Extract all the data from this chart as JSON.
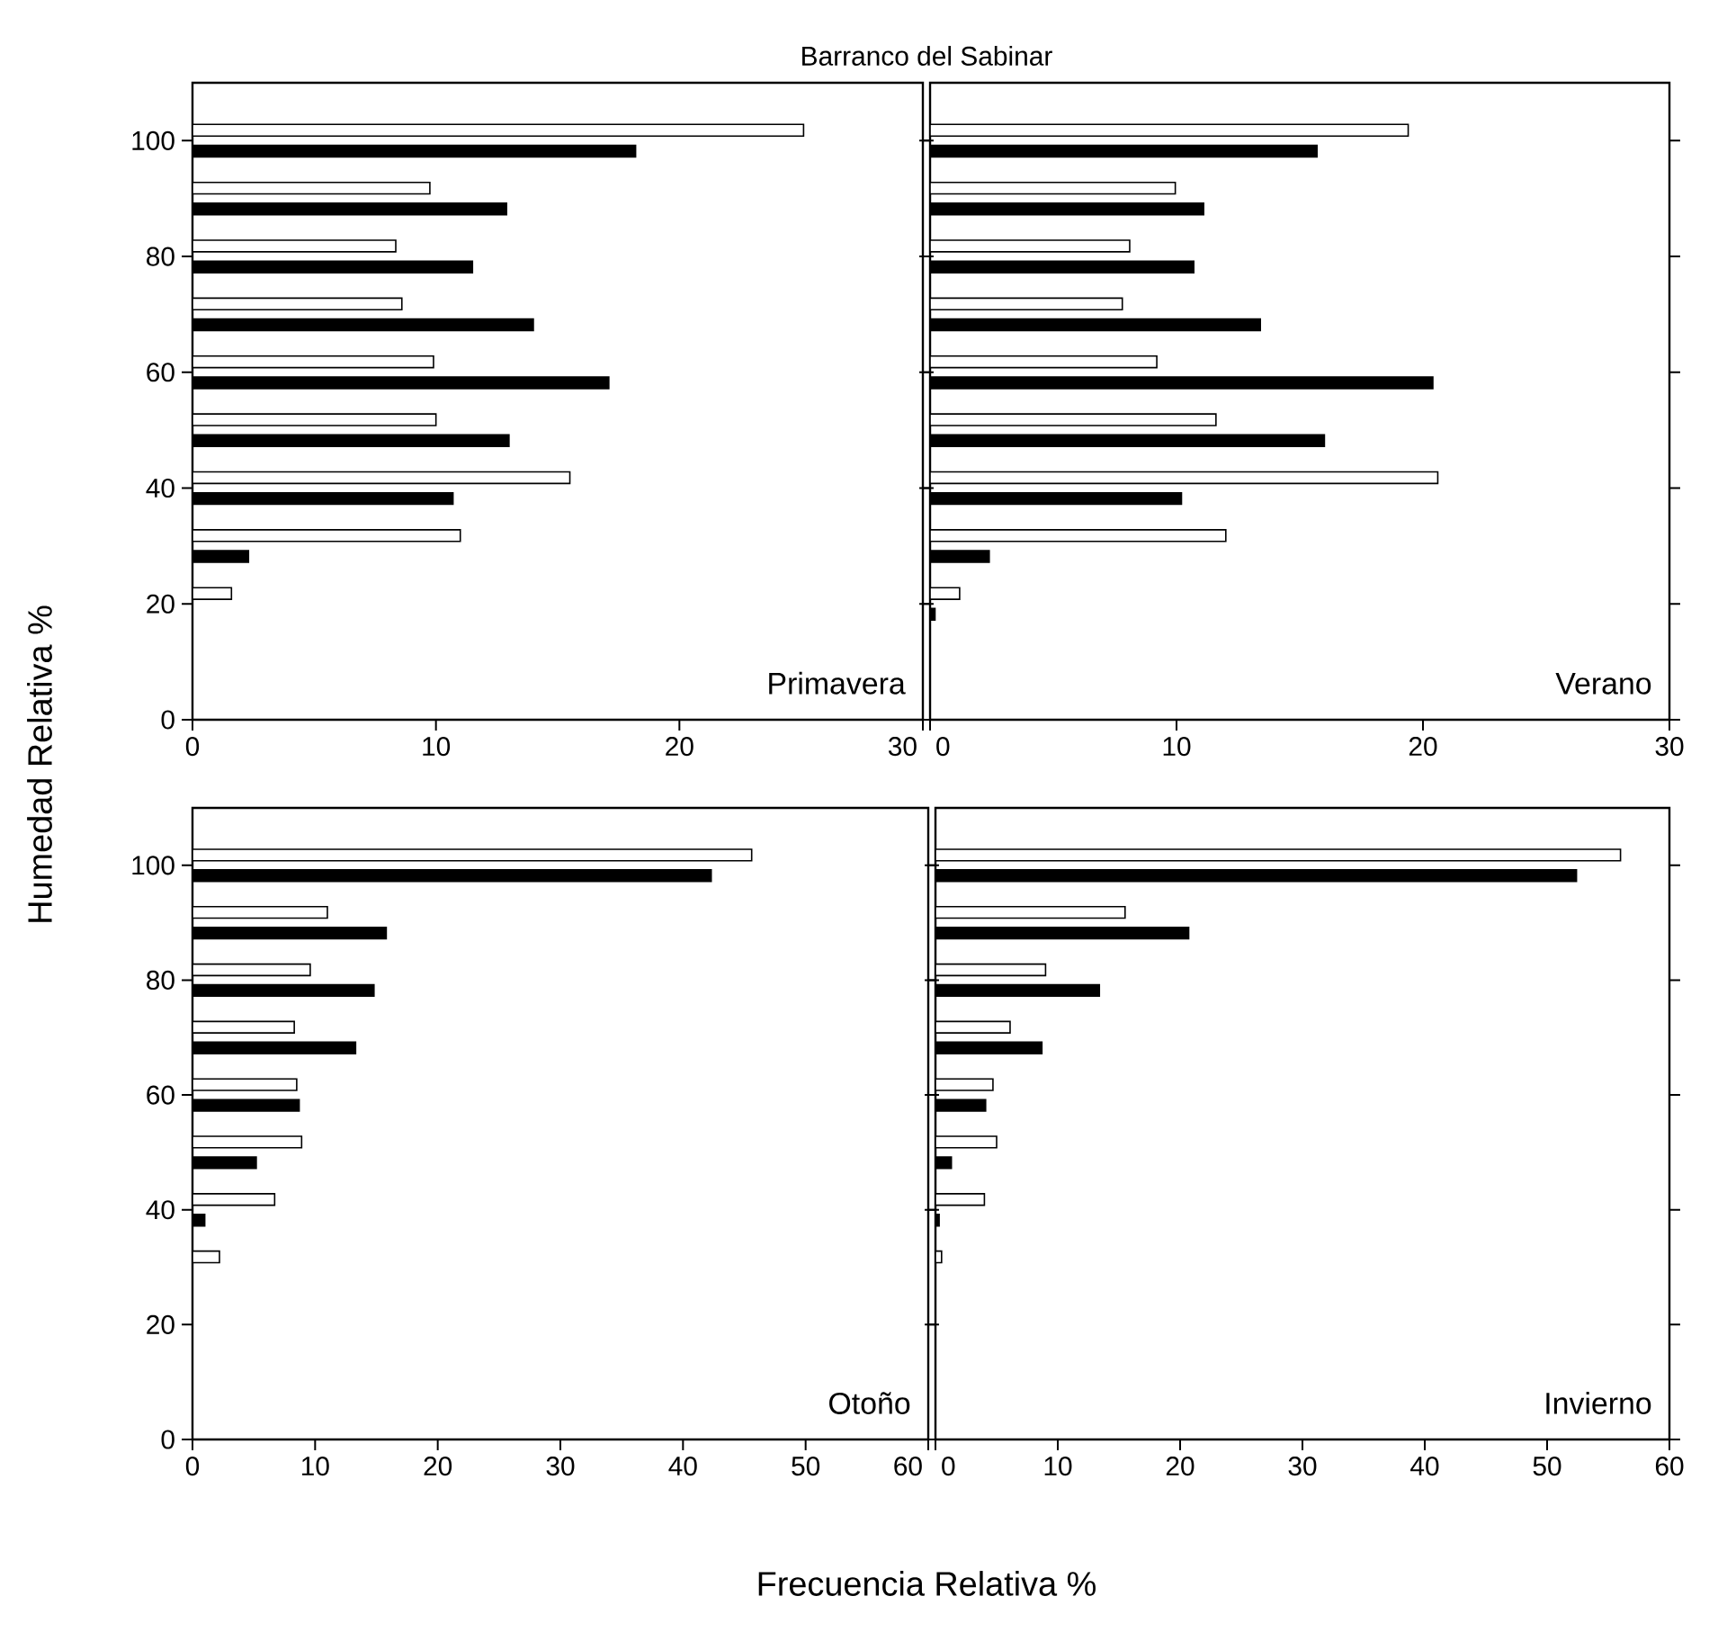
{
  "chart_data": [
    {
      "type": "bar",
      "orientation": "horizontal",
      "title": "Barranco del Sabinar",
      "ylabel": "Humedad Relativa %",
      "x": [
        20,
        30,
        40,
        50,
        60,
        70,
        80,
        90,
        100
      ],
      "xlim": [
        0,
        30
      ],
      "xticks": [
        0,
        10,
        20,
        30
      ],
      "ylim": [
        0,
        110
      ],
      "yticks": [
        0,
        20,
        40,
        60,
        80,
        100
      ],
      "annotations": [
        "Primavera"
      ],
      "series": [
        {
          "color": "#ffffff",
          "values": [
            1.6,
            11.0,
            15.5,
            10.0,
            9.9,
            8.6,
            8.35,
            9.75,
            25.1
          ]
        },
        {
          "color": "#000000",
          "values": [
            0,
            2.3,
            10.7,
            13.0,
            17.1,
            14.0,
            11.5,
            12.9,
            18.2
          ]
        }
      ]
    },
    {
      "type": "bar",
      "orientation": "horizontal",
      "x": [
        20,
        30,
        40,
        50,
        60,
        70,
        80,
        90,
        100
      ],
      "xlim": [
        0,
        30
      ],
      "xticks": [
        0,
        10,
        20,
        30
      ],
      "ylim": [
        0,
        110
      ],
      "yticks": [
        0,
        20,
        40,
        60,
        80,
        100
      ],
      "tick_labels": "x",
      "annotations": [
        "Verano"
      ],
      "series": [
        {
          "color": "#ffffff",
          "values": [
            1.2,
            12.0,
            20.6,
            11.6,
            9.2,
            7.8,
            8.1,
            9.95,
            19.4
          ]
        },
        {
          "color": "#000000",
          "values": [
            0.2,
            2.4,
            10.2,
            16.0,
            20.4,
            13.4,
            10.7,
            11.1,
            15.7
          ]
        }
      ]
    },
    {
      "type": "bar",
      "orientation": "horizontal",
      "xlabel": "Frecuencia Relativa %",
      "x": [
        20,
        30,
        40,
        50,
        60,
        70,
        80,
        90,
        100
      ],
      "xlim": [
        0,
        60
      ],
      "xticks": [
        0,
        10,
        20,
        30,
        40,
        50,
        60
      ],
      "ylim": [
        0,
        110
      ],
      "yticks": [
        0,
        20,
        40,
        60,
        80,
        100
      ],
      "annotations": [
        "Otoño"
      ],
      "series": [
        {
          "color": "#ffffff",
          "values": [
            0,
            2.2,
            6.7,
            8.9,
            8.5,
            8.3,
            9.6,
            11.0,
            45.6
          ]
        },
        {
          "color": "#000000",
          "values": [
            0,
            0,
            1.0,
            5.2,
            8.7,
            13.3,
            14.8,
            15.8,
            42.3
          ]
        }
      ]
    },
    {
      "type": "bar",
      "orientation": "horizontal",
      "x": [
        20,
        30,
        40,
        50,
        60,
        70,
        80,
        90,
        100
      ],
      "xlim": [
        0,
        60
      ],
      "xticks": [
        0,
        10,
        20,
        30,
        40,
        50,
        60
      ],
      "ylim": [
        0,
        110
      ],
      "yticks": [
        0,
        20,
        40,
        60,
        80,
        100
      ],
      "tick_labels": "x",
      "annotations": [
        "Invierno"
      ],
      "series": [
        {
          "color": "#ffffff",
          "values": [
            0,
            0.5,
            4.0,
            5.0,
            4.7,
            6.1,
            9.0,
            15.5,
            56.0
          ]
        },
        {
          "color": "#000000",
          "values": [
            0,
            0,
            0.3,
            1.3,
            4.1,
            8.7,
            13.4,
            20.7,
            52.4
          ]
        }
      ]
    }
  ]
}
